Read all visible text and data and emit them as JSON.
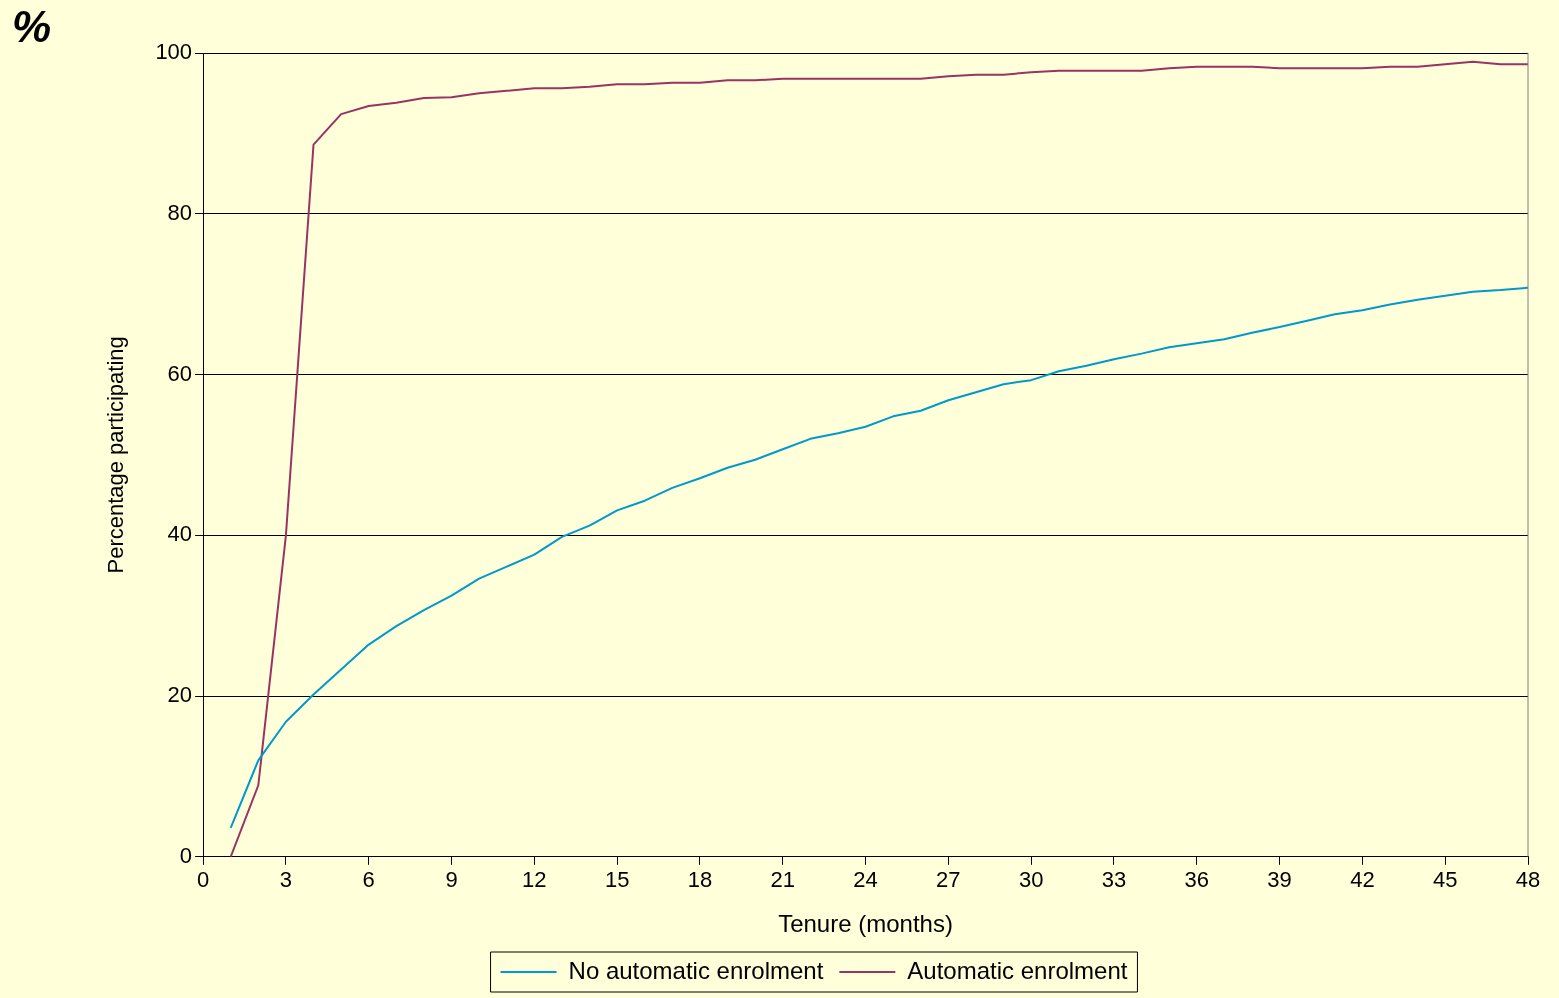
{
  "chart_data": {
    "type": "line",
    "xlabel": "Tenure (months)",
    "ylabel": "Percentage participating",
    "annotations": [
      "%"
    ],
    "x": [
      1,
      2,
      3,
      4,
      5,
      6,
      7,
      8,
      9,
      10,
      11,
      12,
      13,
      14,
      15,
      16,
      17,
      18,
      19,
      20,
      21,
      22,
      23,
      24,
      25,
      26,
      27,
      28,
      29,
      30,
      31,
      32,
      33,
      34,
      35,
      36,
      37,
      38,
      39,
      40,
      41,
      42,
      43,
      44,
      45,
      46,
      47,
      48
    ],
    "series": [
      {
        "name": "No automatic enrolment",
        "color": "#0099cc",
        "values": [
          3.6,
          12,
          16.8,
          20.2,
          23.3,
          26.4,
          28.7,
          30.7,
          32.5,
          34.6,
          36.1,
          37.6,
          39.8,
          41.2,
          43.1,
          44.3,
          45.9,
          47.1,
          48.4,
          49.4,
          50.7,
          52.0,
          52.7,
          53.5,
          54.8,
          55.5,
          56.8,
          57.8,
          58.8,
          59.3,
          60.4,
          61.1,
          61.9,
          62.6,
          63.4,
          63.9,
          64.4,
          65.2,
          65.9,
          66.7,
          67.5,
          68.0,
          68.7,
          69.3,
          69.8,
          70.3,
          70.5,
          70.8
        ]
      },
      {
        "name": "Automatic enrolment",
        "color": "#993366",
        "values": [
          0,
          8.9,
          40,
          88.6,
          92.4,
          93.4,
          93.8,
          94.4,
          94.5,
          95.0,
          95.3,
          95.6,
          95.6,
          95.8,
          96.1,
          96.1,
          96.3,
          96.3,
          96.6,
          96.6,
          96.8,
          96.8,
          96.8,
          96.8,
          96.8,
          96.8,
          97.1,
          97.3,
          97.3,
          97.6,
          97.8,
          97.8,
          97.8,
          97.8,
          98.1,
          98.3,
          98.3,
          98.3,
          98.1,
          98.1,
          98.1,
          98.1,
          98.3,
          98.3,
          98.6,
          98.9,
          98.6,
          98.6
        ]
      }
    ],
    "xlim": [
      0,
      48
    ],
    "xticks": [
      0,
      3,
      6,
      9,
      12,
      15,
      18,
      21,
      24,
      27,
      30,
      33,
      36,
      39,
      42,
      45,
      48
    ],
    "ylim": [
      0,
      100
    ],
    "yticks": [
      0,
      20,
      40,
      60,
      80,
      100
    ],
    "grid": "y",
    "legend": "bottom",
    "marker": "none",
    "line_style": "solid"
  }
}
